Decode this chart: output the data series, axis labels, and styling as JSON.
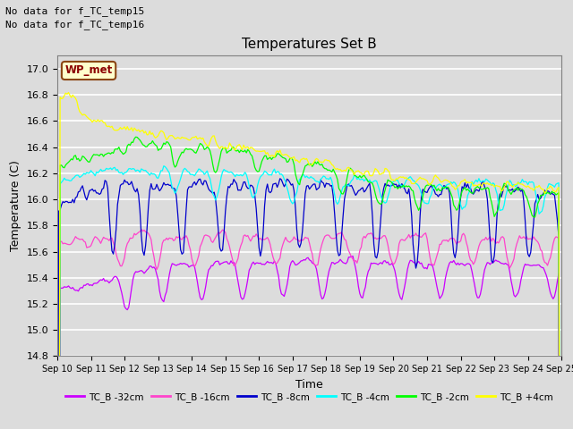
{
  "title": "Temperatures Set B",
  "xlabel": "Time",
  "ylabel": "Temperature (C)",
  "ylim": [
    14.8,
    17.1
  ],
  "xlim": [
    0,
    360
  ],
  "background_color": "#dcdcdc",
  "no_data_text": [
    "No data for f_TC_temp15",
    "No data for f_TC_temp16"
  ],
  "wp_met_label": "WP_met",
  "xtick_labels": [
    "Sep 10",
    "Sep 11",
    "Sep 12",
    "Sep 13",
    "Sep 14",
    "Sep 15",
    "Sep 16",
    "Sep 17",
    "Sep 18",
    "Sep 19",
    "Sep 20",
    "Sep 21",
    "Sep 22",
    "Sep 23",
    "Sep 24",
    "Sep 25"
  ],
  "ytick_values": [
    14.8,
    15.0,
    15.2,
    15.4,
    15.6,
    15.8,
    16.0,
    16.2,
    16.4,
    16.6,
    16.8,
    17.0
  ],
  "series": [
    {
      "label": "TC_B -32cm",
      "color": "#cc00ff"
    },
    {
      "label": "TC_B -16cm",
      "color": "#ff44cc"
    },
    {
      "label": "TC_B -8cm",
      "color": "#0000cc"
    },
    {
      "label": "TC_B -4cm",
      "color": "#00ffff"
    },
    {
      "label": "TC_B -2cm",
      "color": "#00ff00"
    },
    {
      "label": "TC_B +4cm",
      "color": "#ffff00"
    }
  ]
}
